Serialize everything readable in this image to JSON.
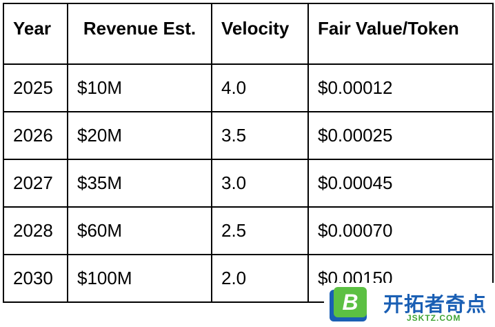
{
  "table": {
    "header": [
      "Year",
      "Revenue Est.",
      "Velocity",
      "Fair Value/Token"
    ],
    "rows": [
      [
        "2025",
        "$10M",
        "4.0",
        "$0.00012"
      ],
      [
        "2026",
        "$20M",
        "3.5",
        "$0.00025"
      ],
      [
        "2027",
        "$35M",
        "3.0",
        "$0.00045"
      ],
      [
        "2028",
        "$60M",
        "2.5",
        "$0.00070"
      ],
      [
        "2030",
        "$100M",
        "2.0",
        "$0.00150"
      ]
    ]
  },
  "watermark": {
    "title": "开拓者奇点",
    "subtitle": "JSKTZ.COM",
    "logo": "B"
  }
}
